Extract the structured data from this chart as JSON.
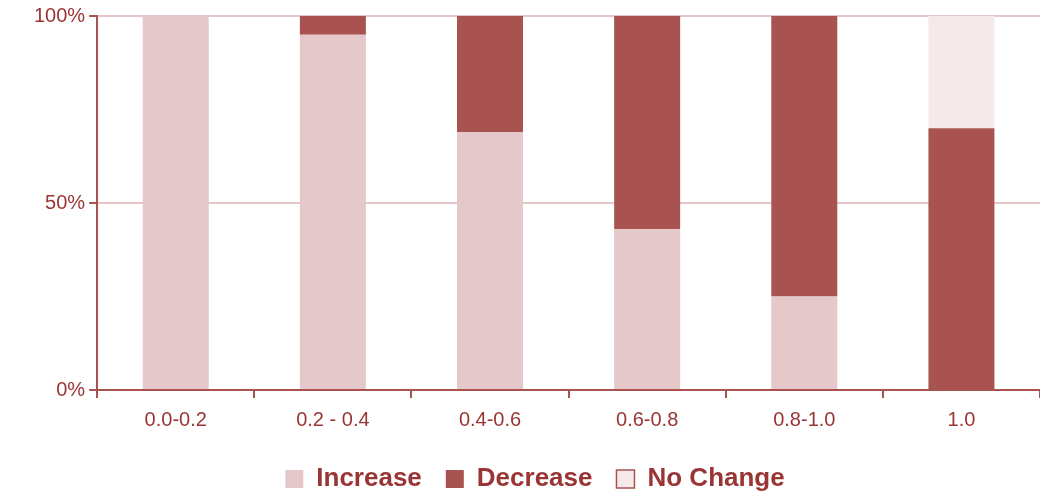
{
  "chart_data": {
    "type": "bar",
    "stacked": true,
    "categories": [
      "0.0-0.2",
      "0.2 - 0.4",
      "0.4-0.6",
      "0.6-0.8",
      "0.8-1.0",
      "1.0"
    ],
    "series": [
      {
        "name": "Increase",
        "color": "#e5c8ca",
        "values": [
          100,
          95,
          69,
          43,
          25,
          0
        ]
      },
      {
        "name": "Decrease",
        "color": "#a85350",
        "values": [
          0,
          5,
          31,
          57,
          75,
          70
        ]
      },
      {
        "name": "No Change",
        "color": "#f6e9e9",
        "values": [
          0,
          0,
          0,
          0,
          0,
          30
        ]
      }
    ],
    "ylim": [
      0,
      100
    ],
    "yticks": [
      {
        "value": 0,
        "label": "0%"
      },
      {
        "value": 50,
        "label": "50%"
      },
      {
        "value": 100,
        "label": "100%"
      }
    ],
    "grid": "y",
    "legend": "bottom"
  }
}
